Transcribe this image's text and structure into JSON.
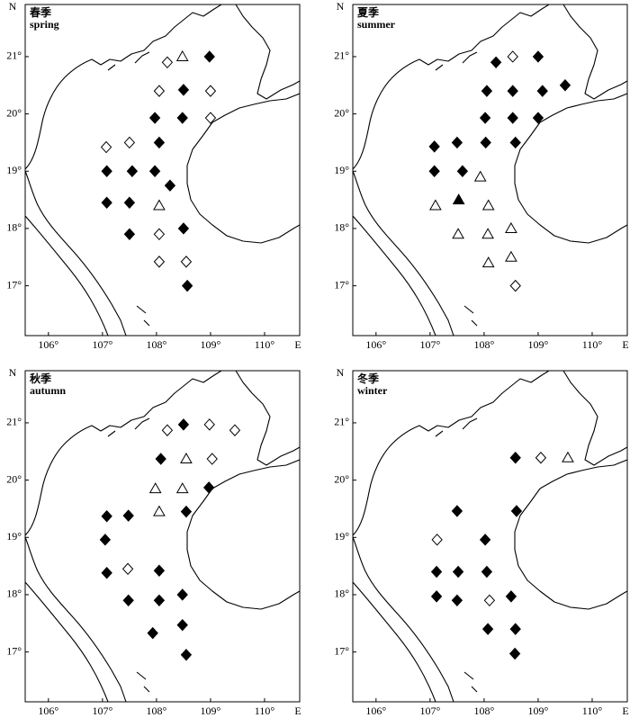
{
  "chart_data": [
    {
      "type": "scatter",
      "title": "春季",
      "subtitle": "spring",
      "xlabel": "E",
      "ylabel": "N",
      "xlim": [
        105.57,
        110.65
      ],
      "ylim": [
        16.13,
        21.91
      ],
      "xticks": [
        {
          "value": 106,
          "label": "106°"
        },
        {
          "value": 107,
          "label": "107°"
        },
        {
          "value": 108,
          "label": "108°"
        },
        {
          "value": 109,
          "label": "109°"
        },
        {
          "value": 110,
          "label": "110°"
        }
      ],
      "yticks": [
        {
          "value": 17,
          "label": "17°"
        },
        {
          "value": 18,
          "label": "18°"
        },
        {
          "value": 19,
          "label": "19°"
        },
        {
          "value": 20,
          "label": "20°"
        },
        {
          "value": 21,
          "label": "21°"
        }
      ],
      "series": [
        {
          "marker": "diamond",
          "filled": true,
          "x": [
            108.98,
            108.5,
            107.97,
            108.48,
            108.05,
            107.08,
            107.55,
            107.97,
            108.25,
            107.08,
            107.5,
            107.5,
            108.5,
            108.57
          ],
          "y": [
            21.0,
            20.42,
            19.93,
            19.93,
            19.5,
            19.0,
            19.0,
            19.0,
            18.75,
            18.45,
            18.45,
            17.9,
            18.0,
            17.0
          ]
        },
        {
          "marker": "diamond",
          "filled": false,
          "x": [
            108.2,
            108.05,
            109.0,
            109.0,
            107.07,
            107.5,
            108.05,
            108.05,
            108.55
          ],
          "y": [
            20.9,
            20.4,
            20.4,
            19.93,
            19.42,
            19.5,
            17.9,
            17.42,
            17.42
          ]
        },
        {
          "marker": "triangle",
          "filled": false,
          "x": [
            108.48,
            108.05
          ],
          "y": [
            21.0,
            18.4
          ]
        }
      ]
    },
    {
      "type": "scatter",
      "title": "夏季",
      "subtitle": "summer",
      "xlabel": "E",
      "ylabel": "N",
      "xlim": [
        105.57,
        110.65
      ],
      "ylim": [
        16.13,
        21.91
      ],
      "xticks": [
        {
          "value": 106,
          "label": "106°"
        },
        {
          "value": 107,
          "label": "107°"
        },
        {
          "value": 108,
          "label": "108°"
        },
        {
          "value": 109,
          "label": "109°"
        },
        {
          "value": 110,
          "label": "110°"
        }
      ],
      "yticks": [
        {
          "value": 17,
          "label": "17°"
        },
        {
          "value": 18,
          "label": "18°"
        },
        {
          "value": 19,
          "label": "19°"
        },
        {
          "value": 20,
          "label": "20°"
        },
        {
          "value": 21,
          "label": "21°"
        }
      ],
      "series": [
        {
          "marker": "diamond",
          "filled": true,
          "x": [
            108.22,
            109.0,
            108.05,
            108.53,
            109.08,
            109.5,
            108.02,
            108.53,
            109.0,
            107.08,
            107.5,
            108.03,
            108.58,
            107.08,
            107.6
          ],
          "y": [
            20.9,
            21.0,
            20.4,
            20.4,
            20.4,
            20.5,
            19.93,
            19.93,
            19.93,
            19.43,
            19.5,
            19.5,
            19.5,
            19.0,
            19.0
          ]
        },
        {
          "marker": "diamond",
          "filled": false,
          "x": [
            108.53,
            108.58
          ],
          "y": [
            21.0,
            17.0
          ]
        },
        {
          "marker": "triangle",
          "filled": false,
          "x": [
            107.93,
            107.1,
            108.08,
            107.52,
            108.07,
            108.5,
            108.08,
            108.5
          ],
          "y": [
            18.9,
            18.4,
            18.4,
            17.9,
            17.9,
            18.0,
            17.4,
            17.5
          ]
        },
        {
          "marker": "triangle",
          "filled": true,
          "x": [
            107.53
          ],
          "y": [
            18.5
          ]
        }
      ]
    },
    {
      "type": "scatter",
      "title": "秋季",
      "subtitle": "autumn",
      "xlabel": "E",
      "ylabel": "N",
      "xlim": [
        105.57,
        110.65
      ],
      "ylim": [
        16.13,
        21.91
      ],
      "xticks": [
        {
          "value": 106,
          "label": "106°"
        },
        {
          "value": 107,
          "label": "107°"
        },
        {
          "value": 108,
          "label": "108°"
        },
        {
          "value": 109,
          "label": "109°"
        },
        {
          "value": 110,
          "label": "110°"
        }
      ],
      "yticks": [
        {
          "value": 17,
          "label": "17°"
        },
        {
          "value": 18,
          "label": "18°"
        },
        {
          "value": 19,
          "label": "19°"
        },
        {
          "value": 20,
          "label": "20°"
        },
        {
          "value": 21,
          "label": "21°"
        }
      ],
      "series": [
        {
          "marker": "diamond",
          "filled": true,
          "x": [
            108.5,
            108.08,
            108.97,
            108.55,
            107.08,
            107.48,
            107.05,
            107.08,
            108.05,
            107.48,
            108.05,
            108.48,
            108.48,
            107.93,
            108.55
          ],
          "y": [
            20.97,
            20.37,
            19.87,
            19.45,
            19.37,
            19.38,
            18.96,
            18.38,
            18.42,
            17.9,
            17.9,
            18.0,
            17.47,
            17.33,
            16.95
          ]
        },
        {
          "marker": "diamond",
          "filled": false,
          "x": [
            108.2,
            108.98,
            109.45,
            109.03,
            107.47
          ],
          "y": [
            20.87,
            20.97,
            20.87,
            20.37,
            18.45
          ]
        },
        {
          "marker": "triangle",
          "filled": false,
          "x": [
            108.55,
            107.98,
            108.48,
            108.05
          ],
          "y": [
            20.37,
            19.85,
            19.85,
            19.45
          ]
        }
      ]
    },
    {
      "type": "scatter",
      "title": "冬季",
      "subtitle": "winter",
      "xlabel": "E",
      "ylabel": "N",
      "xlim": [
        105.57,
        110.65
      ],
      "ylim": [
        16.13,
        21.91
      ],
      "xticks": [
        {
          "value": 106,
          "label": "106°"
        },
        {
          "value": 107,
          "label": "107°"
        },
        {
          "value": 108,
          "label": "108°"
        },
        {
          "value": 109,
          "label": "109°"
        },
        {
          "value": 110,
          "label": "110°"
        }
      ],
      "yticks": [
        {
          "value": 17,
          "label": "17°"
        },
        {
          "value": 18,
          "label": "18°"
        },
        {
          "value": 19,
          "label": "19°"
        },
        {
          "value": 20,
          "label": "20°"
        },
        {
          "value": 21,
          "label": "21°"
        }
      ],
      "series": [
        {
          "marker": "diamond",
          "filled": true,
          "x": [
            108.58,
            107.5,
            108.6,
            108.02,
            107.12,
            107.52,
            108.05,
            107.12,
            107.5,
            108.5,
            108.07,
            108.58,
            108.57
          ],
          "y": [
            20.39,
            19.46,
            19.46,
            18.96,
            18.4,
            18.4,
            18.4,
            17.97,
            17.9,
            17.97,
            17.4,
            17.4,
            16.97
          ]
        },
        {
          "marker": "diamond",
          "filled": false,
          "x": [
            109.05,
            107.13,
            108.1
          ],
          "y": [
            20.39,
            18.96,
            17.9
          ]
        },
        {
          "marker": "triangle",
          "filled": false,
          "x": [
            109.55
          ],
          "y": [
            20.39
          ]
        }
      ]
    }
  ]
}
